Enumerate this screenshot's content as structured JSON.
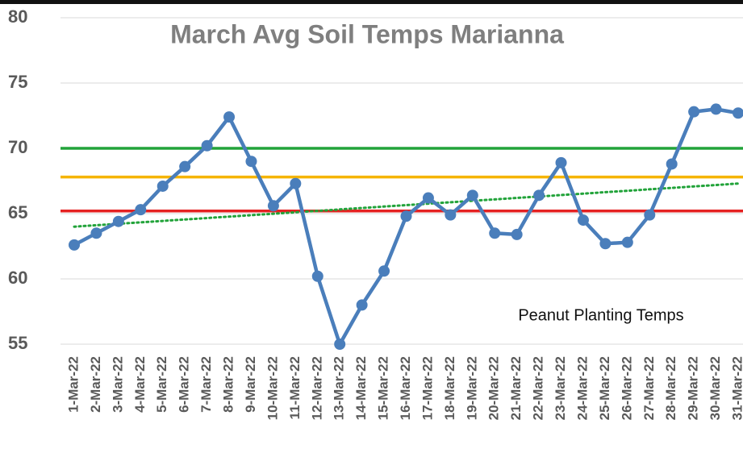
{
  "chart_data": {
    "type": "line",
    "title": "March Avg Soil Temps Marianna",
    "annotation": "Peanut Planting Temps",
    "categories": [
      "1-Mar-22",
      "2-Mar-22",
      "3-Mar-22",
      "4-Mar-22",
      "5-Mar-22",
      "6-Mar-22",
      "7-Mar-22",
      "8-Mar-22",
      "9-Mar-22",
      "10-Mar-22",
      "11-Mar-22",
      "12-Mar-22",
      "13-Mar-22",
      "14-Mar-22",
      "15-Mar-22",
      "16-Mar-22",
      "17-Mar-22",
      "18-Mar-22",
      "19-Mar-22",
      "20-Mar-22",
      "21-Mar-22",
      "22-Mar-22",
      "23-Mar-22",
      "24-Mar-22",
      "25-Mar-22",
      "26-Mar-22",
      "27-Mar-22",
      "28-Mar-22",
      "29-Mar-22",
      "30-Mar-22",
      "31-Mar-22"
    ],
    "values": [
      62.6,
      63.5,
      64.4,
      65.3,
      67.1,
      68.6,
      70.2,
      72.4,
      69.0,
      65.6,
      67.3,
      60.2,
      55.0,
      58.0,
      60.6,
      64.8,
      66.2,
      64.9,
      66.4,
      63.5,
      63.4,
      66.4,
      68.9,
      64.5,
      62.7,
      62.8,
      64.9,
      68.8,
      72.8,
      73.0,
      72.7
    ],
    "color": "#4a7ebb",
    "reference_lines": [
      {
        "value": 70,
        "color": "#22a33a"
      },
      {
        "value": 67.8,
        "color": "#f5b400"
      },
      {
        "value": 65.2,
        "color": "#e52222"
      }
    ],
    "trendline": {
      "start": 64.0,
      "end": 67.3,
      "color": "#22a33a"
    },
    "ylim": [
      55,
      80
    ],
    "yticks": [
      55,
      60,
      65,
      70,
      75,
      80
    ],
    "grid": true
  }
}
